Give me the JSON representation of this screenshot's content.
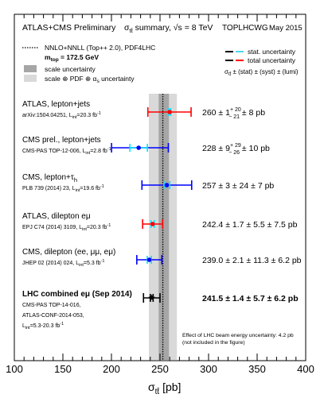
{
  "header": {
    "collab": "ATLAS+CMS Preliminary",
    "summary_prefix": "σ",
    "summary_sub": "tt̄",
    "summary_suffix": " summary, √s = 8 TeV",
    "group": "TOPLHCWG",
    "date": "May 2015"
  },
  "legend_left": {
    "theory_line": "NNLO+NNLL (Top++ 2.0), PDF4LHC",
    "mtop_prefix": "m",
    "mtop_sub": "top",
    "mtop_value": " = 172.5 GeV",
    "scale_band": "scale uncertainty",
    "scale_pdf_band": "scale ⊕ PDF ⊕ α",
    "scale_pdf_sub": "s",
    "scale_pdf_tail": " uncertainty"
  },
  "legend_right": {
    "stat": "stat. uncertainty",
    "total": "total uncertainty",
    "formula_prefix": "σ",
    "formula_sub": "tt̄",
    "formula_rest": " ± (stat) ± (syst) ± (lumi)"
  },
  "footnote": {
    "line1": "Effect of LHC beam energy uncertainty: 4.2 pb",
    "line2": "(not included in the figure)"
  },
  "colors": {
    "frame": "#000000",
    "outer_band": "#d9d9d9",
    "inner_band": "#a6a6a6",
    "theory_line": "#000000",
    "stat_cyan": "#00e5ff",
    "legend_dash_cyan": "#4ad7f2"
  },
  "chart_data": {
    "type": "scatter",
    "xlabel_main": "σ",
    "xlabel_sub": "tt̄",
    "xlabel_unit": " [pb]",
    "xlim": [
      100,
      400
    ],
    "xticks": [
      "100",
      "150",
      "200",
      "250",
      "300",
      "350",
      "400"
    ],
    "theory": {
      "central": 252.9,
      "scale_lo": 248.6,
      "scale_hi": 259.2,
      "total_lo": 238.5,
      "total_hi": 267.4
    },
    "measurements": [
      {
        "name": "ATLAS, lepton+jets",
        "ref_main": "arXiv:1504.04251, L",
        "ref_sub": "int",
        "ref_tail": "=20.3 fb",
        "ref_sup": "-1",
        "value": 260,
        "stat": 1,
        "total_up": 22,
        "total_dn": 22.5,
        "result_main": "260 ± 1",
        "result_sup": "+ 20",
        "result_sub": "− 21",
        "result_tail": " ± 8 pb",
        "color": "#ff0000",
        "marker": "circle",
        "bold": false
      },
      {
        "name": "CMS prel., lepton+jets",
        "ref_main": "CMS-PAS TOP-12-006, L",
        "ref_sub": "int",
        "ref_tail": "=2.8 fb",
        "ref_sup": "-1",
        "value": 228,
        "stat": 9,
        "total_up": 30.6,
        "total_dn": 27.9,
        "result_main": "228 ± 9",
        "result_sup": "+ 29",
        "result_sub": "− 26",
        "result_tail": " ± 10 pb",
        "color": "#0000ff",
        "marker": "circle",
        "bold": false
      },
      {
        "name": "CMS, lepton+τ",
        "name_sub": "h",
        "ref_main": "PLB 739 (2014) 23, L",
        "ref_sub": "int",
        "ref_tail": "=19.6 fb",
        "ref_sup": "-1",
        "value": 257,
        "stat": 3,
        "total_up": 25.6,
        "total_dn": 25.6,
        "result_main": "257 ± 3 ± 24 ± 7 pb",
        "color": "#0000ff",
        "marker": "circle",
        "bold": false
      },
      {
        "name": "ATLAS, dilepton eμ",
        "ref_main": "EPJ C74 (2014) 3109, L",
        "ref_sub": "int",
        "ref_tail": "=20.3 fb",
        "ref_sup": "-1",
        "value": 242.4,
        "stat": 1.7,
        "total_up": 10.3,
        "total_dn": 10.3,
        "result_main": "242.4 ± 1.7 ± 5.5 ± 7.5 pb",
        "color": "#ff0000",
        "marker": "circle",
        "bold": false
      },
      {
        "name": "CMS, dilepton (ee, μμ, eμ)",
        "ref_main": "JHEP 02 (2014) 024, L",
        "ref_sub": "int",
        "ref_tail": "=5.3 fb",
        "ref_sup": "-1",
        "value": 239.0,
        "stat": 2.1,
        "total_up": 12.9,
        "total_dn": 12.9,
        "result_main": "239.0 ± 2.1 ± 11.3 ± 6.2 pb",
        "color": "#0000ff",
        "marker": "circle",
        "bold": false
      },
      {
        "name": "LHC combined eμ (Sep 2014)",
        "ref_lines": [
          "CMS-PAS TOP-14-016,",
          "ATLAS-CONF-2014-053,"
        ],
        "ref_main": "L",
        "ref_sub": "int",
        "ref_tail": "=5.3-20.3 fb",
        "ref_sup": "-1",
        "value": 241.5,
        "stat": 1.4,
        "total_up": 8.5,
        "total_dn": 8.5,
        "result_main": "241.5 ± 1.4 ± 5.7 ± 6.2 pb",
        "color": "#000000",
        "marker": "star",
        "bold": true
      }
    ]
  }
}
